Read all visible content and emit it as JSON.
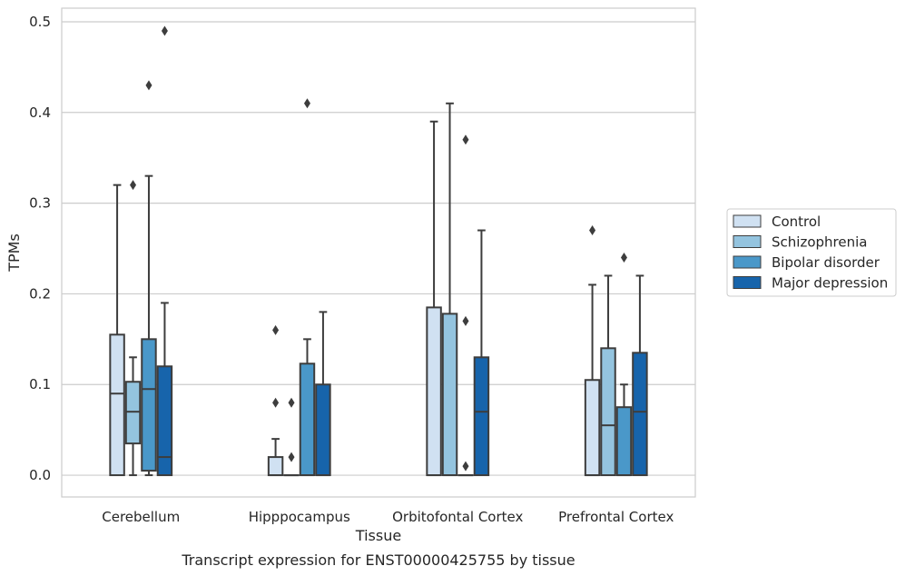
{
  "caption": "Transcript expression for ENST00000425755 by tissue",
  "chart_data": {
    "type": "box",
    "xlabel": "Tissue",
    "ylabel": "TPMs",
    "ylim": [
      -0.024,
      0.515
    ],
    "yticks": [
      0.0,
      0.1,
      0.2,
      0.3,
      0.4,
      0.5
    ],
    "ytick_labels": [
      "0.0",
      "0.1",
      "0.2",
      "0.3",
      "0.4",
      "0.5"
    ],
    "grid": true,
    "legend_position": "right",
    "categories": [
      "Cerebellum",
      "Hipppocampus",
      "Orbitofontal Cortex",
      "Prefrontal Cortex"
    ],
    "series": [
      {
        "name": "Control",
        "color": "#d0e1f2",
        "boxes": [
          {
            "min": 0.0,
            "q1": 0.0,
            "median": 0.09,
            "q3": 0.155,
            "max": 0.32,
            "outliers": []
          },
          {
            "min": 0.0,
            "q1": 0.0,
            "median": 0.0,
            "q3": 0.02,
            "max": 0.04,
            "outliers": [
              0.08,
              0.16
            ]
          },
          {
            "min": 0.0,
            "q1": 0.0,
            "median": 0.0,
            "q3": 0.185,
            "max": 0.39,
            "outliers": []
          },
          {
            "min": 0.0,
            "q1": 0.0,
            "median": 0.0,
            "q3": 0.105,
            "max": 0.21,
            "outliers": [
              0.27
            ]
          }
        ]
      },
      {
        "name": "Schizophrenia",
        "color": "#94c4df",
        "boxes": [
          {
            "min": 0.0,
            "q1": 0.035,
            "median": 0.07,
            "q3": 0.103,
            "max": 0.13,
            "outliers": [
              0.32
            ]
          },
          {
            "min": 0.0,
            "q1": 0.0,
            "median": 0.0,
            "q3": 0.0,
            "max": 0.0,
            "outliers": [
              0.02,
              0.08
            ]
          },
          {
            "min": 0.0,
            "q1": 0.0,
            "median": 0.0,
            "q3": 0.178,
            "max": 0.41,
            "outliers": []
          },
          {
            "min": 0.0,
            "q1": 0.0,
            "median": 0.055,
            "q3": 0.14,
            "max": 0.22,
            "outliers": []
          }
        ]
      },
      {
        "name": "Bipolar disorder",
        "color": "#4a98c9",
        "boxes": [
          {
            "min": 0.0,
            "q1": 0.005,
            "median": 0.095,
            "q3": 0.15,
            "max": 0.33,
            "outliers": [
              0.43
            ]
          },
          {
            "min": 0.0,
            "q1": 0.0,
            "median": 0.0,
            "q3": 0.123,
            "max": 0.15,
            "outliers": [
              0.41
            ]
          },
          {
            "min": 0.0,
            "q1": 0.0,
            "median": 0.0,
            "q3": 0.0,
            "max": 0.0,
            "outliers": [
              0.01,
              0.17,
              0.37
            ]
          },
          {
            "min": 0.0,
            "q1": 0.0,
            "median": 0.0,
            "q3": 0.075,
            "max": 0.1,
            "outliers": [
              0.24
            ]
          }
        ]
      },
      {
        "name": "Major depression",
        "color": "#1764ab",
        "boxes": [
          {
            "min": 0.0,
            "q1": 0.0,
            "median": 0.02,
            "q3": 0.12,
            "max": 0.19,
            "outliers": [
              0.49
            ]
          },
          {
            "min": 0.0,
            "q1": 0.0,
            "median": 0.0,
            "q3": 0.1,
            "max": 0.18,
            "outliers": []
          },
          {
            "min": 0.0,
            "q1": 0.0,
            "median": 0.07,
            "q3": 0.13,
            "max": 0.27,
            "outliers": []
          },
          {
            "min": 0.0,
            "q1": 0.0,
            "median": 0.07,
            "q3": 0.135,
            "max": 0.22,
            "outliers": []
          }
        ]
      }
    ]
  }
}
